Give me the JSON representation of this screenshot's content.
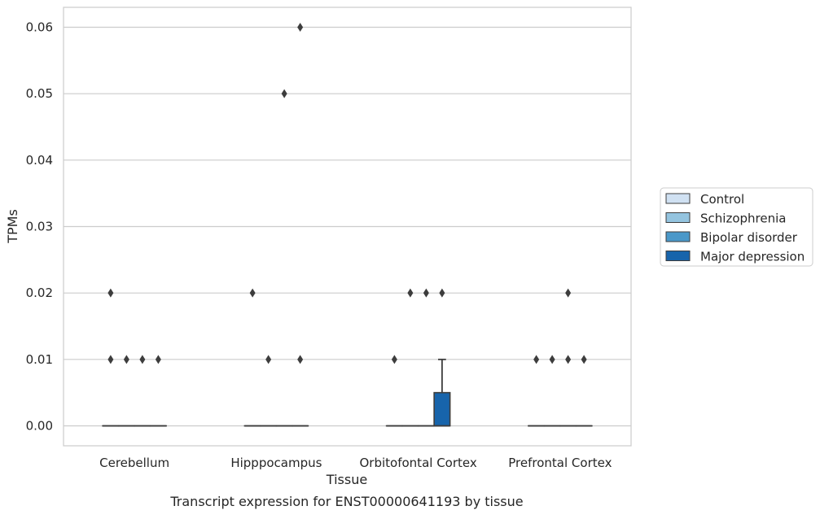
{
  "chart_data": {
    "type": "box",
    "title": "",
    "caption": "Transcript expression for ENST00000641193 by tissue",
    "xlabel": "Tissue",
    "ylabel": "TPMs",
    "ylim": [
      -0.003,
      0.063
    ],
    "yticks": [
      0.0,
      0.01,
      0.02,
      0.03,
      0.04,
      0.05,
      0.06
    ],
    "ytick_labels": [
      "0.00",
      "0.01",
      "0.02",
      "0.03",
      "0.04",
      "0.05",
      "0.06"
    ],
    "grid": "horizontal",
    "legend_position": "right",
    "categories": [
      "Cerebellum",
      "Hipppocampus",
      "Orbitofontal Cortex",
      "Prefrontal Cortex"
    ],
    "series": [
      {
        "name": "Control",
        "color": "#d0e1f2",
        "boxes": [
          {
            "q1": 0,
            "median": 0,
            "q3": 0,
            "whisker_low": 0,
            "whisker_high": 0,
            "outliers": [
              0.02,
              0.01
            ]
          },
          {
            "q1": 0,
            "median": 0,
            "q3": 0,
            "whisker_low": 0,
            "whisker_high": 0,
            "outliers": [
              0.02
            ]
          },
          {
            "q1": 0,
            "median": 0,
            "q3": 0,
            "whisker_low": 0,
            "whisker_high": 0,
            "outliers": [
              0.01
            ]
          },
          {
            "q1": 0,
            "median": 0,
            "q3": 0,
            "whisker_low": 0,
            "whisker_high": 0,
            "outliers": [
              0.01
            ]
          }
        ]
      },
      {
        "name": "Schizophrenia",
        "color": "#94c4df",
        "boxes": [
          {
            "q1": 0,
            "median": 0,
            "q3": 0,
            "whisker_low": 0,
            "whisker_high": 0,
            "outliers": [
              0.01
            ]
          },
          {
            "q1": 0,
            "median": 0,
            "q3": 0,
            "whisker_low": 0,
            "whisker_high": 0,
            "outliers": [
              0.01
            ]
          },
          {
            "q1": 0,
            "median": 0,
            "q3": 0,
            "whisker_low": 0,
            "whisker_high": 0,
            "outliers": [
              0.02
            ]
          },
          {
            "q1": 0,
            "median": 0,
            "q3": 0,
            "whisker_low": 0,
            "whisker_high": 0,
            "outliers": [
              0.01
            ]
          }
        ]
      },
      {
        "name": "Bipolar disorder",
        "color": "#4a98c9",
        "boxes": [
          {
            "q1": 0,
            "median": 0,
            "q3": 0,
            "whisker_low": 0,
            "whisker_high": 0,
            "outliers": [
              0.01
            ]
          },
          {
            "q1": 0,
            "median": 0,
            "q3": 0,
            "whisker_low": 0,
            "whisker_high": 0,
            "outliers": [
              0.05
            ]
          },
          {
            "q1": 0,
            "median": 0,
            "q3": 0,
            "whisker_low": 0,
            "whisker_high": 0,
            "outliers": [
              0.02
            ]
          },
          {
            "q1": 0,
            "median": 0,
            "q3": 0,
            "whisker_low": 0,
            "whisker_high": 0,
            "outliers": [
              0.01,
              0.02
            ]
          }
        ]
      },
      {
        "name": "Major depression",
        "color": "#1764ab",
        "boxes": [
          {
            "q1": 0,
            "median": 0,
            "q3": 0,
            "whisker_low": 0,
            "whisker_high": 0,
            "outliers": [
              0.01
            ]
          },
          {
            "q1": 0,
            "median": 0,
            "q3": 0,
            "whisker_low": 0,
            "whisker_high": 0,
            "outliers": [
              0.06,
              0.01
            ]
          },
          {
            "q1": 0,
            "median": 0,
            "q3": 0.005,
            "whisker_low": 0,
            "whisker_high": 0.01,
            "outliers": [
              0.02
            ]
          },
          {
            "q1": 0,
            "median": 0,
            "q3": 0,
            "whisker_low": 0,
            "whisker_high": 0,
            "outliers": [
              0.01
            ]
          }
        ]
      }
    ]
  }
}
